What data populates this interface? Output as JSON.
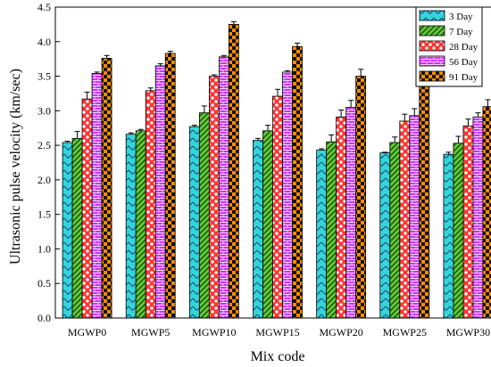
{
  "chart_data": {
    "type": "bar",
    "title": "",
    "xlabel": "Mix code",
    "ylabel": "Ultrasonic pulse velocity (km/sec)",
    "ylim": [
      0,
      4.5
    ],
    "yticks": [
      "0.0",
      "0.5",
      "1.0",
      "1.5",
      "2.0",
      "2.5",
      "3.0",
      "3.5",
      "4.0",
      "4.5"
    ],
    "grid": false,
    "legend_position": "top-right",
    "categories": [
      "MGWP0",
      "MGWP5",
      "MGWP10",
      "MGWP15",
      "MGWP20",
      "MGWP25",
      "MGWP30"
    ],
    "series": [
      {
        "name": "3 Day",
        "color": "#33d6d6",
        "pattern": "chevron",
        "values": [
          2.54,
          2.66,
          2.77,
          2.57,
          2.43,
          2.39,
          2.37
        ],
        "errors": [
          0.02,
          0.02,
          0.02,
          0.03,
          0.02,
          0.01,
          0.03
        ]
      },
      {
        "name": "7 Day",
        "color": "#66cc33",
        "pattern": "diagonal",
        "values": [
          2.6,
          2.71,
          2.97,
          2.71,
          2.55,
          2.54,
          2.53
        ],
        "errors": [
          0.1,
          0.02,
          0.1,
          0.08,
          0.1,
          0.08,
          0.1
        ]
      },
      {
        "name": "28 Day",
        "color": "#ff3333",
        "pattern": "dots",
        "values": [
          3.17,
          3.29,
          3.5,
          3.21,
          2.91,
          2.85,
          2.78
        ],
        "errors": [
          0.1,
          0.04,
          0.02,
          0.1,
          0.1,
          0.1,
          0.1
        ]
      },
      {
        "name": "56 Day",
        "color": "#cc33ff",
        "pattern": "brick",
        "values": [
          3.54,
          3.65,
          3.78,
          3.56,
          3.05,
          2.93,
          2.91
        ],
        "errors": [
          0.02,
          0.03,
          0.02,
          0.02,
          0.1,
          0.1,
          0.06
        ]
      },
      {
        "name": "91 Day",
        "color": "#ff8c00",
        "pattern": "checker",
        "values": [
          3.76,
          3.83,
          4.25,
          3.93,
          3.5,
          3.35,
          3.06
        ],
        "errors": [
          0.04,
          0.03,
          0.04,
          0.05,
          0.1,
          0.1,
          0.1
        ]
      }
    ]
  }
}
